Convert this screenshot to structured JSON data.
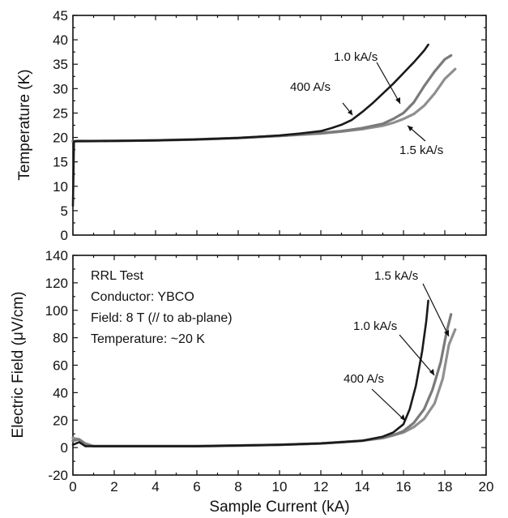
{
  "colors": {
    "400 A/s": "#1a1a1a",
    "1.0 kA/s": "#7a7a7a",
    "1.5 kA/s": "#8f8f8f"
  },
  "chart_data": [
    {
      "type": "line",
      "title": "",
      "xlabel": "",
      "ylabel": "Temperature (K)",
      "xlim": [
        0,
        20
      ],
      "ylim": [
        0,
        45
      ],
      "x_ticks": [
        "0",
        "2",
        "4",
        "6",
        "8",
        "10",
        "12",
        "14",
        "16",
        "18",
        "20"
      ],
      "y_ticks": [
        "0",
        "5",
        "10",
        "15",
        "20",
        "25",
        "30",
        "35",
        "40",
        "45"
      ],
      "grid": false,
      "series": [
        {
          "name": "400 A/s",
          "x": [
            0,
            0.05,
            0.2,
            2,
            4,
            6,
            8,
            10,
            11,
            12,
            12.5,
            13,
            13.5,
            14,
            14.5,
            15,
            15.5,
            16,
            16.5,
            17,
            17.2
          ],
          "y": [
            6,
            19.2,
            19.3,
            19.3,
            19.4,
            19.6,
            19.9,
            20.4,
            20.8,
            21.3,
            21.9,
            22.6,
            23.6,
            25.2,
            27.0,
            29.0,
            31.0,
            33.2,
            35.4,
            37.8,
            39.0
          ]
        },
        {
          "name": "1.0 kA/s",
          "x": [
            0,
            2,
            4,
            6,
            8,
            10,
            12,
            13,
            14,
            15,
            15.5,
            16,
            16.5,
            17,
            17.5,
            18,
            18.3
          ],
          "y": [
            19.2,
            19.3,
            19.4,
            19.6,
            19.9,
            20.3,
            20.9,
            21.3,
            21.9,
            22.8,
            23.8,
            25.0,
            27.2,
            30.5,
            33.5,
            36.0,
            36.8
          ]
        },
        {
          "name": "1.5 kA/s",
          "x": [
            0,
            2,
            4,
            6,
            8,
            10,
            12,
            13,
            14,
            15,
            15.5,
            16,
            16.5,
            17,
            17.5,
            18,
            18.5
          ],
          "y": [
            19.2,
            19.3,
            19.4,
            19.6,
            19.9,
            20.3,
            20.8,
            21.2,
            21.7,
            22.4,
            23.0,
            23.8,
            24.8,
            26.5,
            29.0,
            32.0,
            34.0
          ]
        }
      ],
      "annotations": [
        {
          "text": "1.0 kA/s",
          "series": "1.0 kA/s"
        },
        {
          "text": "400 A/s",
          "series": "400 A/s"
        },
        {
          "text": "1.5 kA/s",
          "series": "1.5 kA/s"
        }
      ]
    },
    {
      "type": "line",
      "title": "",
      "xlabel": "Sample Current (kA)",
      "ylabel": "Electric Field (μV/cm)",
      "xlim": [
        0,
        20
      ],
      "ylim": [
        -20,
        140
      ],
      "x_ticks": [
        "0",
        "2",
        "4",
        "6",
        "8",
        "10",
        "12",
        "14",
        "16",
        "18",
        "20"
      ],
      "y_ticks": [
        "-20",
        "0",
        "20",
        "40",
        "60",
        "80",
        "100",
        "120",
        "140"
      ],
      "grid": false,
      "info_text": [
        "RRL Test",
        "Conductor: YBCO",
        "Field: 8 T (// to ab-plane)",
        "Temperature: ~20 K"
      ],
      "series": [
        {
          "name": "400 A/s",
          "x": [
            0,
            0.3,
            0.6,
            1,
            2,
            4,
            6,
            8,
            10,
            12,
            13,
            14,
            15,
            15.5,
            16,
            16.3,
            16.6,
            16.9,
            17.1,
            17.2
          ],
          "y": [
            2,
            4,
            1,
            1,
            1,
            1,
            1,
            1.5,
            2,
            3,
            4,
            5,
            8,
            11,
            17,
            28,
            45,
            70,
            92,
            107
          ]
        },
        {
          "name": "1.0 kA/s",
          "x": [
            0,
            0.3,
            0.6,
            1,
            2,
            4,
            6,
            8,
            10,
            12,
            13,
            14,
            15,
            15.5,
            16,
            16.5,
            17,
            17.4,
            17.8,
            18.1,
            18.3
          ],
          "y": [
            5,
            6,
            2,
            1,
            1,
            1,
            1,
            1.5,
            2,
            3,
            4,
            5,
            7,
            9,
            12,
            18,
            28,
            42,
            62,
            85,
            97
          ]
        },
        {
          "name": "1.5 kA/s",
          "x": [
            0,
            0.3,
            0.6,
            1,
            2,
            4,
            6,
            8,
            10,
            12,
            13,
            14,
            15,
            15.5,
            16,
            16.5,
            17,
            17.5,
            17.9,
            18.2,
            18.5
          ],
          "y": [
            7,
            6,
            3,
            1,
            1,
            1,
            1,
            1.5,
            2,
            3,
            4,
            5,
            7,
            9,
            11,
            15,
            21,
            32,
            50,
            75,
            86
          ]
        }
      ],
      "annotations": [
        {
          "text": "1.5 kA/s",
          "series": "1.5 kA/s"
        },
        {
          "text": "1.0 kA/s",
          "series": "1.0 kA/s"
        },
        {
          "text": "400 A/s",
          "series": "400 A/s"
        }
      ]
    }
  ]
}
